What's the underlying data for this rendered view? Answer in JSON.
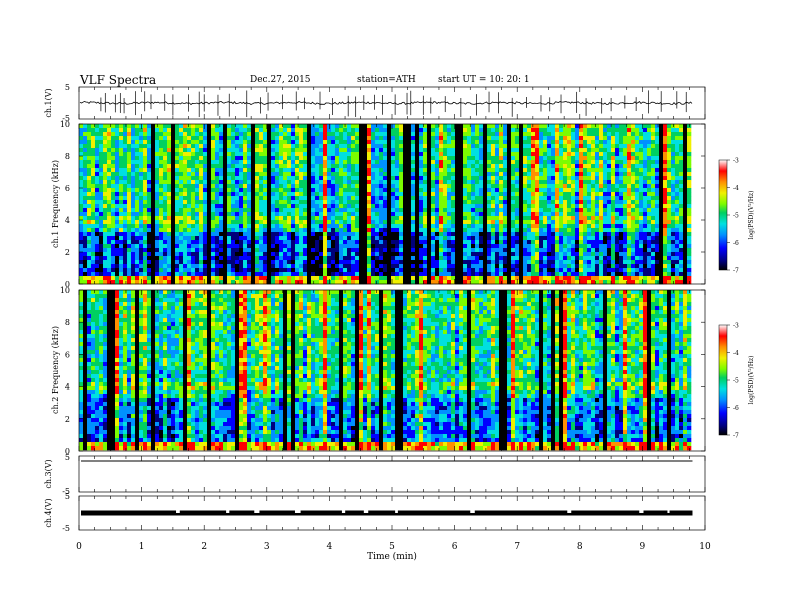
{
  "header": {
    "title": "VLF  Spectra",
    "date": "Dec.27, 2015",
    "station": "station=ATH",
    "start": "start  UT  =   10: 20: 1"
  },
  "chart_data": [
    {
      "type": "line",
      "panel": "ch1-waveform",
      "ylabel": "ch.1(V)",
      "yticks": [
        "5",
        "-5"
      ],
      "ylim": [
        -5,
        5
      ],
      "xlim": [
        0,
        10
      ],
      "data_end_min": 9.8,
      "baseline": 0,
      "noise_amplitude": 0.35,
      "spikes": [
        0.35,
        0.42,
        0.58,
        0.66,
        0.72,
        0.9,
        1.05,
        1.15,
        1.37,
        1.5,
        1.75,
        1.92,
        2.0,
        2.22,
        2.4,
        2.68,
        2.9,
        3.02,
        3.25,
        3.47,
        3.6,
        3.85,
        4.05,
        4.3,
        4.42,
        4.55,
        4.72,
        4.85,
        5.05,
        5.24,
        5.3,
        5.5,
        5.62,
        5.85,
        6.1,
        6.35,
        6.55,
        6.7,
        6.92,
        7.15,
        7.38,
        7.52,
        7.7,
        7.95,
        8.1,
        8.35,
        8.5,
        8.72,
        8.9,
        9.1,
        9.3,
        9.55,
        9.7
      ]
    },
    {
      "type": "heatmap",
      "panel": "ch1-spectrogram",
      "ylabel": "ch.1 Frequency (kHz)",
      "ytick_labels": [
        "0",
        "2",
        "4",
        "6",
        "8",
        "10"
      ],
      "ylim": [
        0,
        10
      ],
      "xlim": [
        0,
        10
      ],
      "colorbar_label": "log(PSD)(V²/Hz)",
      "colorbar_range": [
        -7,
        -3
      ],
      "colorbar_ticks": [
        "-3",
        "-4",
        "-5",
        "-6",
        "-7"
      ]
    },
    {
      "type": "heatmap",
      "panel": "ch2-spectrogram",
      "ylabel": "ch.2 Frequency (kHz)",
      "ytick_labels": [
        "0",
        "2",
        "4",
        "6",
        "8",
        "10"
      ],
      "ylim": [
        0,
        10
      ],
      "xlim": [
        0,
        10
      ],
      "colorbar_label": "log(PSD)(V²/Hz)",
      "colorbar_range": [
        -7,
        -3
      ],
      "colorbar_ticks": [
        "-3",
        "-4",
        "-5",
        "-6",
        "-7"
      ]
    },
    {
      "type": "line",
      "panel": "ch3-waveform",
      "ylabel": "ch.3(V)",
      "yticks": [
        "5",
        "-5"
      ],
      "ylim": [
        -5,
        5
      ],
      "xlim": [
        0,
        10
      ],
      "value": 5
    },
    {
      "type": "line",
      "panel": "ch4-waveform",
      "ylabel": "ch.4(V)",
      "yticks": [
        "5",
        "-5"
      ],
      "ylim": [
        -5,
        5
      ],
      "xlim": [
        0,
        10
      ],
      "value": 0,
      "gaps": [
        1.55,
        2.35,
        2.8,
        3.45,
        4.2,
        4.55,
        5.05,
        6.25,
        7.8,
        8.95,
        9.4
      ]
    }
  ],
  "xaxis": {
    "label": "Time  (min)",
    "ticks": [
      "0",
      "1",
      "2",
      "3",
      "4",
      "5",
      "6",
      "7",
      "8",
      "9",
      "10"
    ]
  },
  "colors": {
    "colormap": [
      "#000000",
      "#00007a",
      "#0000ff",
      "#0090ff",
      "#00e0e0",
      "#00d060",
      "#7cfc00",
      "#f0f000",
      "#ff9000",
      "#ff0000",
      "#ffffff"
    ]
  }
}
